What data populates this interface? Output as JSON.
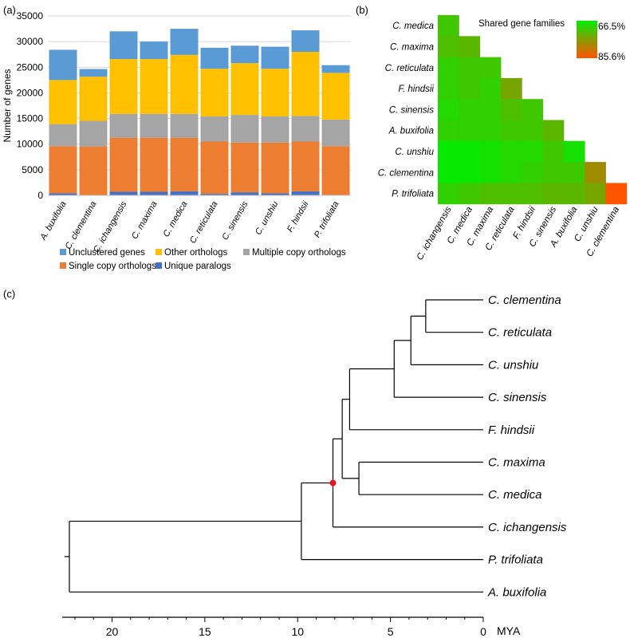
{
  "panel_labels": {
    "a": "(a)",
    "b": "(b)",
    "c": "(c)"
  },
  "chart_data": [
    {
      "id": "a",
      "type": "bar",
      "stacked": true,
      "ylabel": "Number of genes",
      "ylim": [
        0,
        35000
      ],
      "yticks": [
        0,
        5000,
        10000,
        15000,
        20000,
        25000,
        30000,
        35000
      ],
      "grid": "horizontal",
      "legend_position": "bottom",
      "categories": [
        "A. buxifolia",
        "C. clementina",
        "C. ichangensis",
        "C. maxima",
        "C. medica",
        "C. reticulata",
        "C. sinensis",
        "C. unshiu",
        "F. hindsii",
        "P. trifoliata"
      ],
      "series": [
        {
          "name": "Unique paralogs",
          "color": "#4472C4",
          "values": [
            400,
            50,
            700,
            700,
            800,
            300,
            600,
            400,
            800,
            100
          ]
        },
        {
          "name": "Single copy orthologs",
          "color": "#ED7D31",
          "values": [
            9200,
            9500,
            10500,
            10500,
            10400,
            10200,
            9700,
            9900,
            9700,
            9500
          ]
        },
        {
          "name": "Multiple copy orthologs",
          "color": "#A5A5A5",
          "values": [
            4300,
            5000,
            4700,
            4700,
            4700,
            4900,
            5400,
            5100,
            5000,
            5200
          ]
        },
        {
          "name": "Other orthologs",
          "color": "#FFC000",
          "values": [
            8600,
            8600,
            10700,
            10700,
            11500,
            9300,
            10100,
            9300,
            12500,
            9100
          ]
        },
        {
          "name": "Unclustered genes",
          "color": "#5B9BD5",
          "values": [
            5900,
            1500,
            5400,
            3400,
            5100,
            4100,
            3400,
            4300,
            4200,
            1500
          ]
        }
      ],
      "legend_order": [
        "Unclustered genes",
        "Other orthologs",
        "Multiple copy orthologs",
        "Single copy orthologs",
        "Unique paralogs"
      ]
    },
    {
      "id": "b",
      "type": "heatmap",
      "legend_title": "Shared gene families",
      "scale_labels": [
        "66.5%",
        "85.6%"
      ],
      "scale_range": [
        66.5,
        85.6
      ],
      "colors": {
        "low": "#00EE00",
        "mid": "#A08C00",
        "high": "#FF5500"
      },
      "row_labels": [
        "C. medica",
        "C. maxima",
        "C. reticulata",
        "F. hindsii",
        "C. sinensis",
        "A. buxifolia",
        "C. unshiu",
        "C. clementina",
        "P. trifoliata"
      ],
      "col_labels": [
        "C. ichangensis",
        "C. medica",
        "C. maxima",
        "C. reticulata",
        "F. hindsii",
        "C. sinensis",
        "A. buxifolia",
        "C. unshiu",
        "C. clementina"
      ],
      "values": [
        [
          71
        ],
        [
          72,
          73
        ],
        [
          70,
          71,
          71
        ],
        [
          70,
          71,
          70,
          75
        ],
        [
          69,
          70,
          70,
          72,
          71
        ],
        [
          70,
          70,
          70,
          71,
          71,
          73
        ],
        [
          67,
          67,
          68,
          69,
          69,
          71,
          68
        ],
        [
          67,
          67,
          68,
          69,
          70,
          71,
          71,
          78
        ],
        [
          70,
          71,
          72,
          72,
          72,
          73,
          73,
          75,
          85.6
        ]
      ]
    },
    {
      "id": "c",
      "type": "phylogenetic tree",
      "xlabel": "MYA",
      "xlim": [
        22.6,
        0
      ],
      "xticks": [
        20,
        15,
        10,
        5,
        0
      ],
      "tips": [
        "C. clementina",
        "C. reticulata",
        "C. unshiu",
        "C. sinensis",
        "F. hindsii",
        "C. maxima",
        "C. medica",
        "C. ichangensis",
        "P. trifoliata",
        "A. buxifolia"
      ],
      "highlighted_node_age": 8.1,
      "highlight_color": "#E8141A",
      "tree": {
        "age": 22.3,
        "children": [
          {
            "age": 9.8,
            "children": [
              {
                "age": 8.1,
                "children": [
                  {
                    "age": 7.6,
                    "children": [
                      {
                        "age": 7.2,
                        "children": [
                          {
                            "age": 4.8,
                            "children": [
                              {
                                "age": 3.9,
                                "children": [
                                  {
                                    "age": 3.1,
                                    "children": [
                                      {
                                        "tip": 0
                                      },
                                      {
                                        "tip": 1
                                      }
                                    ]
                                  },
                                  {
                                    "tip": 2
                                  }
                                ]
                              },
                              {
                                "tip": 3
                              }
                            ]
                          },
                          {
                            "tip": 4
                          }
                        ]
                      },
                      {
                        "age": 6.7,
                        "children": [
                          {
                            "tip": 5
                          },
                          {
                            "tip": 6
                          }
                        ]
                      }
                    ]
                  },
                  {
                    "tip": 7
                  }
                ]
              },
              {
                "tip": 8
              }
            ]
          },
          {
            "tip": 9
          }
        ]
      }
    }
  ]
}
